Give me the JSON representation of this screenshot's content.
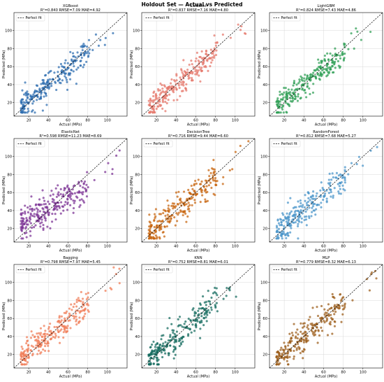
{
  "figure": {
    "suptitle": "Holdout Set — Actual vs Predicted"
  },
  "chart_data": [
    {
      "type": "scatter",
      "model": "XGBoost",
      "title": "XGBoost",
      "metrics": "R²=0.840  RMSE=7.09  MAE=4.92",
      "color": "#2e6db0",
      "xlabel": "Actual (MPa)",
      "ylabel": "Predicted (MPa)",
      "xlim": [
        5,
        120
      ],
      "ylim": [
        5,
        120
      ],
      "xticks": [
        20,
        40,
        60,
        80,
        100
      ],
      "yticks": [
        20,
        40,
        60,
        80,
        100
      ],
      "legend": "Perfect fit",
      "legend_position": "top-left",
      "grid": true,
      "sigma": 7.1,
      "slope": 0.9
    },
    {
      "type": "scatter",
      "model": "CatBoost",
      "title": "CatBoost",
      "metrics": "R²=0.837  RMSE=7.16  MAE=4.80",
      "color": "#e5776b",
      "xlabel": "Actual (MPa)",
      "ylabel": "Predicted (MPa)",
      "xlim": [
        5,
        120
      ],
      "ylim": [
        5,
        120
      ],
      "xticks": [
        20,
        40,
        60,
        80,
        100
      ],
      "yticks": [
        20,
        40,
        60,
        80,
        100
      ],
      "legend": "Perfect fit",
      "legend_position": "top-left",
      "grid": true,
      "sigma": 7.2,
      "slope": 0.9
    },
    {
      "type": "scatter",
      "model": "LightGBM",
      "title": "LightGBM",
      "metrics": "R²=0.824  RMSE=7.43  MAE=4.86",
      "color": "#2e9e54",
      "xlabel": "Actual (MPa)",
      "ylabel": "Predicted (MPa)",
      "xlim": [
        5,
        120
      ],
      "ylim": [
        5,
        120
      ],
      "xticks": [
        20,
        40,
        60,
        80,
        100
      ],
      "yticks": [
        20,
        40,
        60,
        80,
        100
      ],
      "legend": "Perfect fit",
      "legend_position": "top-left",
      "grid": true,
      "sigma": 7.4,
      "slope": 0.9
    },
    {
      "type": "scatter",
      "model": "ElasticNet",
      "title": "ElasticNet",
      "metrics": "R²=0.598  RMSE=11.23  MAE=8.69",
      "color": "#7b3294",
      "xlabel": "Actual (MPa)",
      "ylabel": "Predicted (MPa)",
      "xlim": [
        5,
        120
      ],
      "ylim": [
        5,
        120
      ],
      "xticks": [
        20,
        40,
        60,
        80,
        100
      ],
      "yticks": [
        20,
        40,
        60,
        80,
        100
      ],
      "legend": "Perfect fit",
      "legend_position": "top-left",
      "grid": true,
      "sigma": 9.5,
      "slope": 0.6
    },
    {
      "type": "scatter",
      "model": "DecisionTree",
      "title": "DecisionTree",
      "metrics": "R²=0.716  RMSE=9.44  MAE=6.60",
      "color": "#c8650f",
      "xlabel": "Actual (MPa)",
      "ylabel": "Predicted (MPa)",
      "xlim": [
        5,
        120
      ],
      "ylim": [
        5,
        120
      ],
      "xticks": [
        20,
        40,
        60,
        80,
        100
      ],
      "yticks": [
        20,
        40,
        60,
        80,
        100
      ],
      "legend": "Perfect fit",
      "legend_position": "top-left",
      "grid": true,
      "sigma": 9.4,
      "slope": 0.95
    },
    {
      "type": "scatter",
      "model": "RandomForest",
      "title": "RandomForest",
      "metrics": "R²=0.812  RMSE=7.68  MAE=5.27",
      "color": "#4a94c9",
      "xlabel": "Actual (MPa)",
      "ylabel": "Predicted (MPa)",
      "xlim": [
        5,
        120
      ],
      "ylim": [
        5,
        120
      ],
      "xticks": [
        20,
        40,
        60,
        80,
        100
      ],
      "yticks": [
        20,
        40,
        60,
        80,
        100
      ],
      "legend": "Perfect fit",
      "legend_position": "top-left",
      "grid": true,
      "sigma": 7.6,
      "slope": 0.88
    },
    {
      "type": "scatter",
      "model": "Bagging",
      "title": "Bagging",
      "metrics": "R²=0.798  RMSE=7.97  MAE=5.45",
      "color": "#f07c56",
      "xlabel": "Actual (MPa)",
      "ylabel": "Predicted (MPa)",
      "xlim": [
        5,
        120
      ],
      "ylim": [
        5,
        120
      ],
      "xticks": [
        20,
        40,
        60,
        80,
        100
      ],
      "yticks": [
        20,
        40,
        60,
        80,
        100
      ],
      "legend": "Perfect fit",
      "legend_position": "top-left",
      "grid": true,
      "sigma": 7.9,
      "slope": 0.88
    },
    {
      "type": "scatter",
      "model": "KNN",
      "title": "KNN",
      "metrics": "R²=0.752  RMSE=8.81  MAE=6.01",
      "color": "#136b5e",
      "xlabel": "Actual (MPa)",
      "ylabel": "Predicted (MPa)",
      "xlim": [
        5,
        120
      ],
      "ylim": [
        5,
        120
      ],
      "xticks": [
        20,
        40,
        60,
        80,
        100
      ],
      "yticks": [
        20,
        40,
        60,
        80,
        100
      ],
      "legend": "Perfect fit",
      "legend_position": "top-left",
      "grid": true,
      "sigma": 8.8,
      "slope": 0.9
    },
    {
      "type": "scatter",
      "model": "MLP",
      "title": "MLP",
      "metrics": "R²=0.779  RMSE=8.32  MAE=6.13",
      "color": "#9c5e1c",
      "xlabel": "Actual (MPa)",
      "ylabel": "Predicted (MPa)",
      "xlim": [
        5,
        120
      ],
      "ylim": [
        5,
        120
      ],
      "xticks": [
        20,
        40,
        60,
        80,
        100
      ],
      "yticks": [
        20,
        40,
        60,
        80,
        100
      ],
      "legend": "Perfect fit",
      "legend_position": "top-left",
      "grid": true,
      "sigma": 8.3,
      "slope": 0.92
    }
  ]
}
